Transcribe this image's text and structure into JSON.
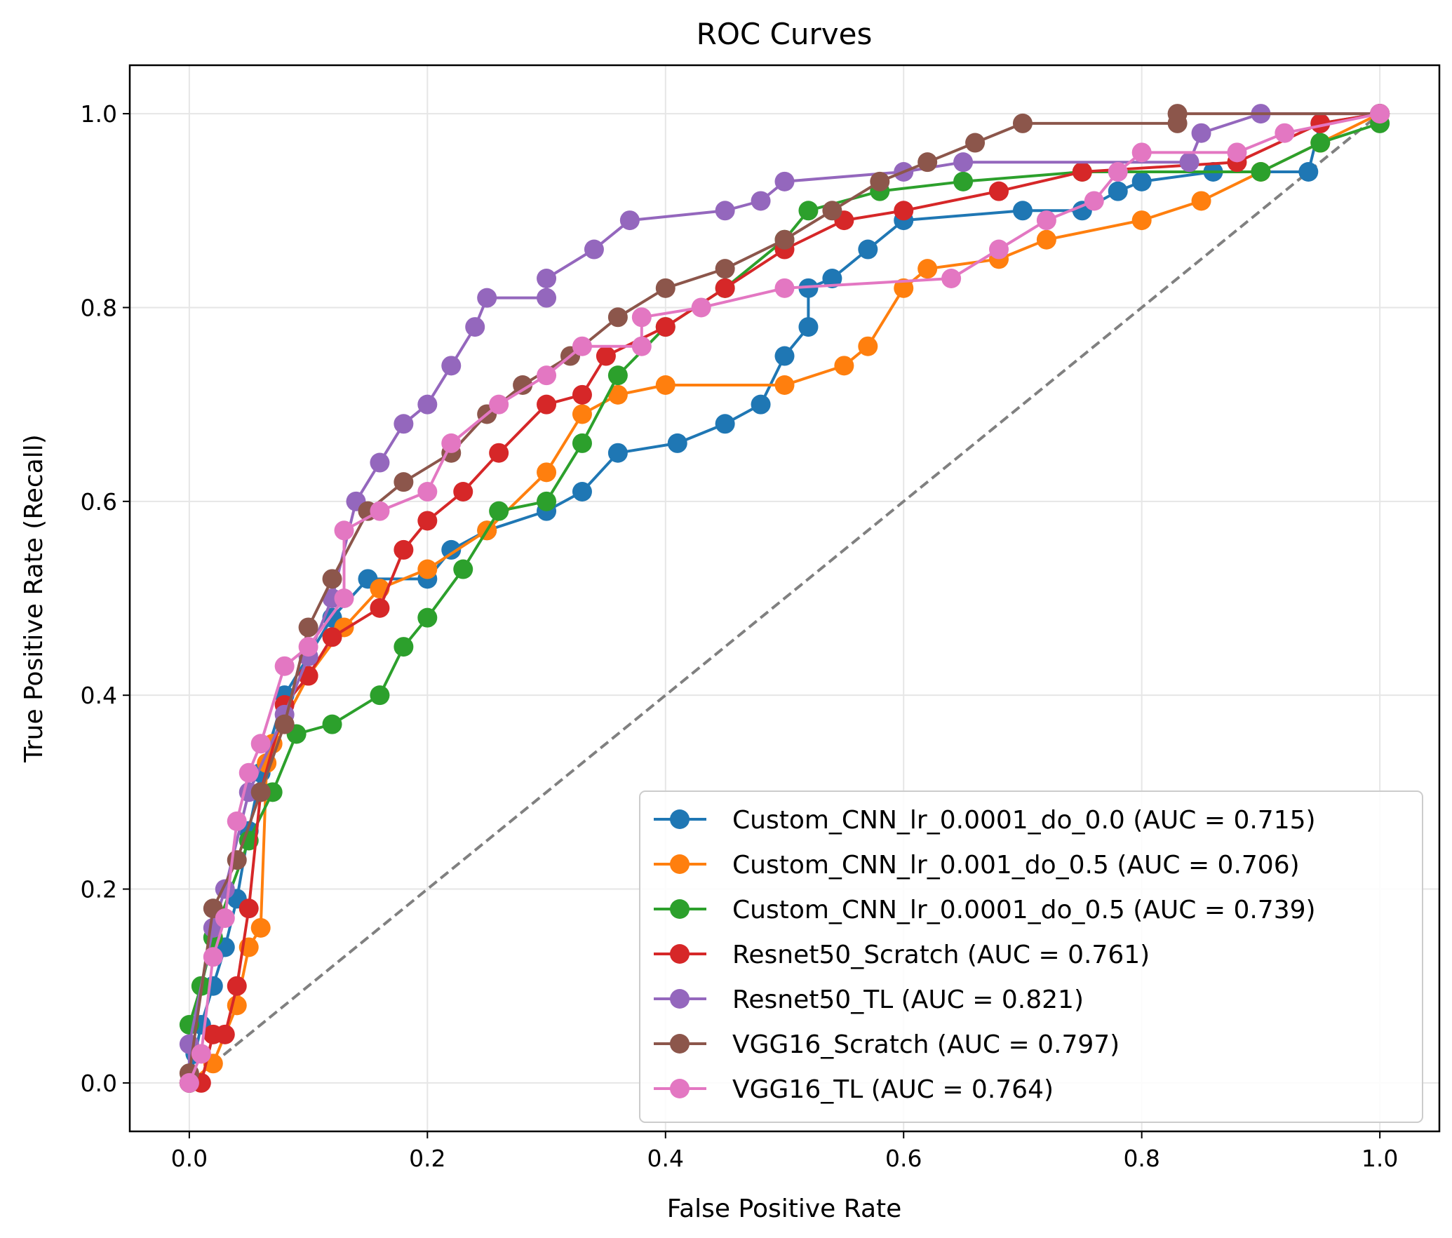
{
  "chart_data": {
    "type": "line",
    "title": "ROC Curves",
    "xlabel": "False Positive Rate",
    "ylabel": "True Positive Rate (Recall)",
    "xlim": [
      -0.05,
      1.05
    ],
    "ylim": [
      -0.05,
      1.05
    ],
    "xticks": [
      "0.0",
      "0.2",
      "0.4",
      "0.6",
      "0.8",
      "1.0"
    ],
    "yticks": [
      "0.0",
      "0.2",
      "0.4",
      "0.6",
      "0.8",
      "1.0"
    ],
    "grid": true,
    "legend_position": "lower-right",
    "diagonal": {
      "color": "#808080",
      "style": "dashed"
    },
    "series": [
      {
        "name": "Custom_CNN_lr_0.0001_do_0.0 (AUC = 0.715)",
        "color": "#1f77b4",
        "points": [
          [
            0,
            0
          ],
          [
            0.005,
            0.03
          ],
          [
            0.01,
            0.06
          ],
          [
            0.02,
            0.1
          ],
          [
            0.03,
            0.14
          ],
          [
            0.04,
            0.19
          ],
          [
            0.05,
            0.26
          ],
          [
            0.06,
            0.32
          ],
          [
            0.08,
            0.4
          ],
          [
            0.12,
            0.48
          ],
          [
            0.15,
            0.52
          ],
          [
            0.2,
            0.52
          ],
          [
            0.22,
            0.55
          ],
          [
            0.25,
            0.57
          ],
          [
            0.3,
            0.59
          ],
          [
            0.33,
            0.61
          ],
          [
            0.36,
            0.65
          ],
          [
            0.41,
            0.66
          ],
          [
            0.45,
            0.68
          ],
          [
            0.48,
            0.7
          ],
          [
            0.5,
            0.75
          ],
          [
            0.52,
            0.78
          ],
          [
            0.52,
            0.82
          ],
          [
            0.54,
            0.83
          ],
          [
            0.57,
            0.86
          ],
          [
            0.6,
            0.89
          ],
          [
            0.7,
            0.9
          ],
          [
            0.75,
            0.9
          ],
          [
            0.78,
            0.92
          ],
          [
            0.8,
            0.93
          ],
          [
            0.86,
            0.94
          ],
          [
            0.94,
            0.94
          ],
          [
            0.95,
            0.99
          ],
          [
            1,
            1
          ]
        ]
      },
      {
        "name": "Custom_CNN_lr_0.001_do_0.5 (AUC = 0.706)",
        "color": "#ff7f0e",
        "points": [
          [
            0,
            0
          ],
          [
            0.02,
            0.02
          ],
          [
            0.04,
            0.08
          ],
          [
            0.05,
            0.14
          ],
          [
            0.06,
            0.16
          ],
          [
            0.065,
            0.33
          ],
          [
            0.07,
            0.35
          ],
          [
            0.1,
            0.42
          ],
          [
            0.13,
            0.47
          ],
          [
            0.16,
            0.51
          ],
          [
            0.2,
            0.53
          ],
          [
            0.25,
            0.57
          ],
          [
            0.3,
            0.63
          ],
          [
            0.33,
            0.69
          ],
          [
            0.36,
            0.71
          ],
          [
            0.4,
            0.72
          ],
          [
            0.5,
            0.72
          ],
          [
            0.55,
            0.74
          ],
          [
            0.57,
            0.76
          ],
          [
            0.6,
            0.82
          ],
          [
            0.62,
            0.84
          ],
          [
            0.68,
            0.85
          ],
          [
            0.72,
            0.87
          ],
          [
            0.8,
            0.89
          ],
          [
            0.85,
            0.91
          ],
          [
            0.9,
            0.94
          ],
          [
            0.95,
            0.97
          ],
          [
            1,
            1
          ]
        ]
      },
      {
        "name": "Custom_CNN_lr_0.0001_do_0.5 (AUC = 0.739)",
        "color": "#2ca02c",
        "points": [
          [
            0,
            0
          ],
          [
            0,
            0.06
          ],
          [
            0.01,
            0.1
          ],
          [
            0.02,
            0.15
          ],
          [
            0.05,
            0.25
          ],
          [
            0.07,
            0.3
          ],
          [
            0.09,
            0.36
          ],
          [
            0.12,
            0.37
          ],
          [
            0.16,
            0.4
          ],
          [
            0.18,
            0.45
          ],
          [
            0.2,
            0.48
          ],
          [
            0.23,
            0.53
          ],
          [
            0.26,
            0.59
          ],
          [
            0.3,
            0.6
          ],
          [
            0.33,
            0.66
          ],
          [
            0.36,
            0.73
          ],
          [
            0.4,
            0.78
          ],
          [
            0.45,
            0.82
          ],
          [
            0.5,
            0.87
          ],
          [
            0.52,
            0.9
          ],
          [
            0.58,
            0.92
          ],
          [
            0.65,
            0.93
          ],
          [
            0.75,
            0.94
          ],
          [
            0.9,
            0.94
          ],
          [
            0.95,
            0.97
          ],
          [
            1,
            0.99
          ]
        ]
      },
      {
        "name": "Resnet50_Scratch (AUC = 0.761)",
        "color": "#d62728",
        "points": [
          [
            0,
            0
          ],
          [
            0.01,
            0
          ],
          [
            0.02,
            0.05
          ],
          [
            0.03,
            0.05
          ],
          [
            0.04,
            0.1
          ],
          [
            0.05,
            0.18
          ],
          [
            0.06,
            0.3
          ],
          [
            0.08,
            0.39
          ],
          [
            0.1,
            0.42
          ],
          [
            0.12,
            0.46
          ],
          [
            0.16,
            0.49
          ],
          [
            0.18,
            0.55
          ],
          [
            0.2,
            0.58
          ],
          [
            0.23,
            0.61
          ],
          [
            0.26,
            0.65
          ],
          [
            0.3,
            0.7
          ],
          [
            0.33,
            0.71
          ],
          [
            0.35,
            0.75
          ],
          [
            0.4,
            0.78
          ],
          [
            0.45,
            0.82
          ],
          [
            0.5,
            0.86
          ],
          [
            0.55,
            0.89
          ],
          [
            0.6,
            0.9
          ],
          [
            0.68,
            0.92
          ],
          [
            0.75,
            0.94
          ],
          [
            0.88,
            0.95
          ],
          [
            0.95,
            0.99
          ],
          [
            1,
            1
          ]
        ]
      },
      {
        "name": "Resnet50_TL (AUC = 0.821)",
        "color": "#9467bd",
        "points": [
          [
            0,
            0
          ],
          [
            0,
            0.04
          ],
          [
            0.02,
            0.16
          ],
          [
            0.03,
            0.2
          ],
          [
            0.05,
            0.3
          ],
          [
            0.08,
            0.38
          ],
          [
            0.1,
            0.44
          ],
          [
            0.12,
            0.5
          ],
          [
            0.14,
            0.6
          ],
          [
            0.16,
            0.64
          ],
          [
            0.18,
            0.68
          ],
          [
            0.2,
            0.7
          ],
          [
            0.22,
            0.74
          ],
          [
            0.24,
            0.78
          ],
          [
            0.25,
            0.81
          ],
          [
            0.3,
            0.81
          ],
          [
            0.3,
            0.83
          ],
          [
            0.34,
            0.86
          ],
          [
            0.37,
            0.89
          ],
          [
            0.45,
            0.9
          ],
          [
            0.48,
            0.91
          ],
          [
            0.5,
            0.93
          ],
          [
            0.6,
            0.94
          ],
          [
            0.65,
            0.95
          ],
          [
            0.84,
            0.95
          ],
          [
            0.85,
            0.98
          ],
          [
            0.9,
            1
          ],
          [
            1,
            1
          ]
        ]
      },
      {
        "name": "VGG16_Scratch (AUC = 0.797)",
        "color": "#8c564b",
        "points": [
          [
            0,
            0
          ],
          [
            0,
            0.01
          ],
          [
            0.02,
            0.18
          ],
          [
            0.04,
            0.23
          ],
          [
            0.06,
            0.3
          ],
          [
            0.08,
            0.37
          ],
          [
            0.1,
            0.47
          ],
          [
            0.12,
            0.52
          ],
          [
            0.15,
            0.59
          ],
          [
            0.18,
            0.62
          ],
          [
            0.22,
            0.65
          ],
          [
            0.25,
            0.69
          ],
          [
            0.28,
            0.72
          ],
          [
            0.32,
            0.75
          ],
          [
            0.36,
            0.79
          ],
          [
            0.4,
            0.82
          ],
          [
            0.45,
            0.84
          ],
          [
            0.5,
            0.87
          ],
          [
            0.54,
            0.9
          ],
          [
            0.58,
            0.93
          ],
          [
            0.62,
            0.95
          ],
          [
            0.66,
            0.97
          ],
          [
            0.7,
            0.99
          ],
          [
            0.83,
            0.99
          ],
          [
            0.83,
            1
          ],
          [
            1,
            1
          ]
        ]
      },
      {
        "name": "VGG16_TL (AUC = 0.764)",
        "color": "#e377c2",
        "points": [
          [
            0,
            0
          ],
          [
            0.01,
            0.03
          ],
          [
            0.02,
            0.13
          ],
          [
            0.03,
            0.17
          ],
          [
            0.04,
            0.27
          ],
          [
            0.05,
            0.32
          ],
          [
            0.06,
            0.35
          ],
          [
            0.08,
            0.43
          ],
          [
            0.1,
            0.45
          ],
          [
            0.13,
            0.5
          ],
          [
            0.13,
            0.57
          ],
          [
            0.16,
            0.59
          ],
          [
            0.2,
            0.61
          ],
          [
            0.22,
            0.66
          ],
          [
            0.26,
            0.7
          ],
          [
            0.3,
            0.73
          ],
          [
            0.33,
            0.76
          ],
          [
            0.38,
            0.76
          ],
          [
            0.38,
            0.79
          ],
          [
            0.43,
            0.8
          ],
          [
            0.5,
            0.82
          ],
          [
            0.64,
            0.83
          ],
          [
            0.68,
            0.86
          ],
          [
            0.72,
            0.89
          ],
          [
            0.76,
            0.91
          ],
          [
            0.78,
            0.94
          ],
          [
            0.8,
            0.96
          ],
          [
            0.88,
            0.96
          ],
          [
            0.92,
            0.98
          ],
          [
            1,
            1
          ]
        ]
      }
    ]
  }
}
